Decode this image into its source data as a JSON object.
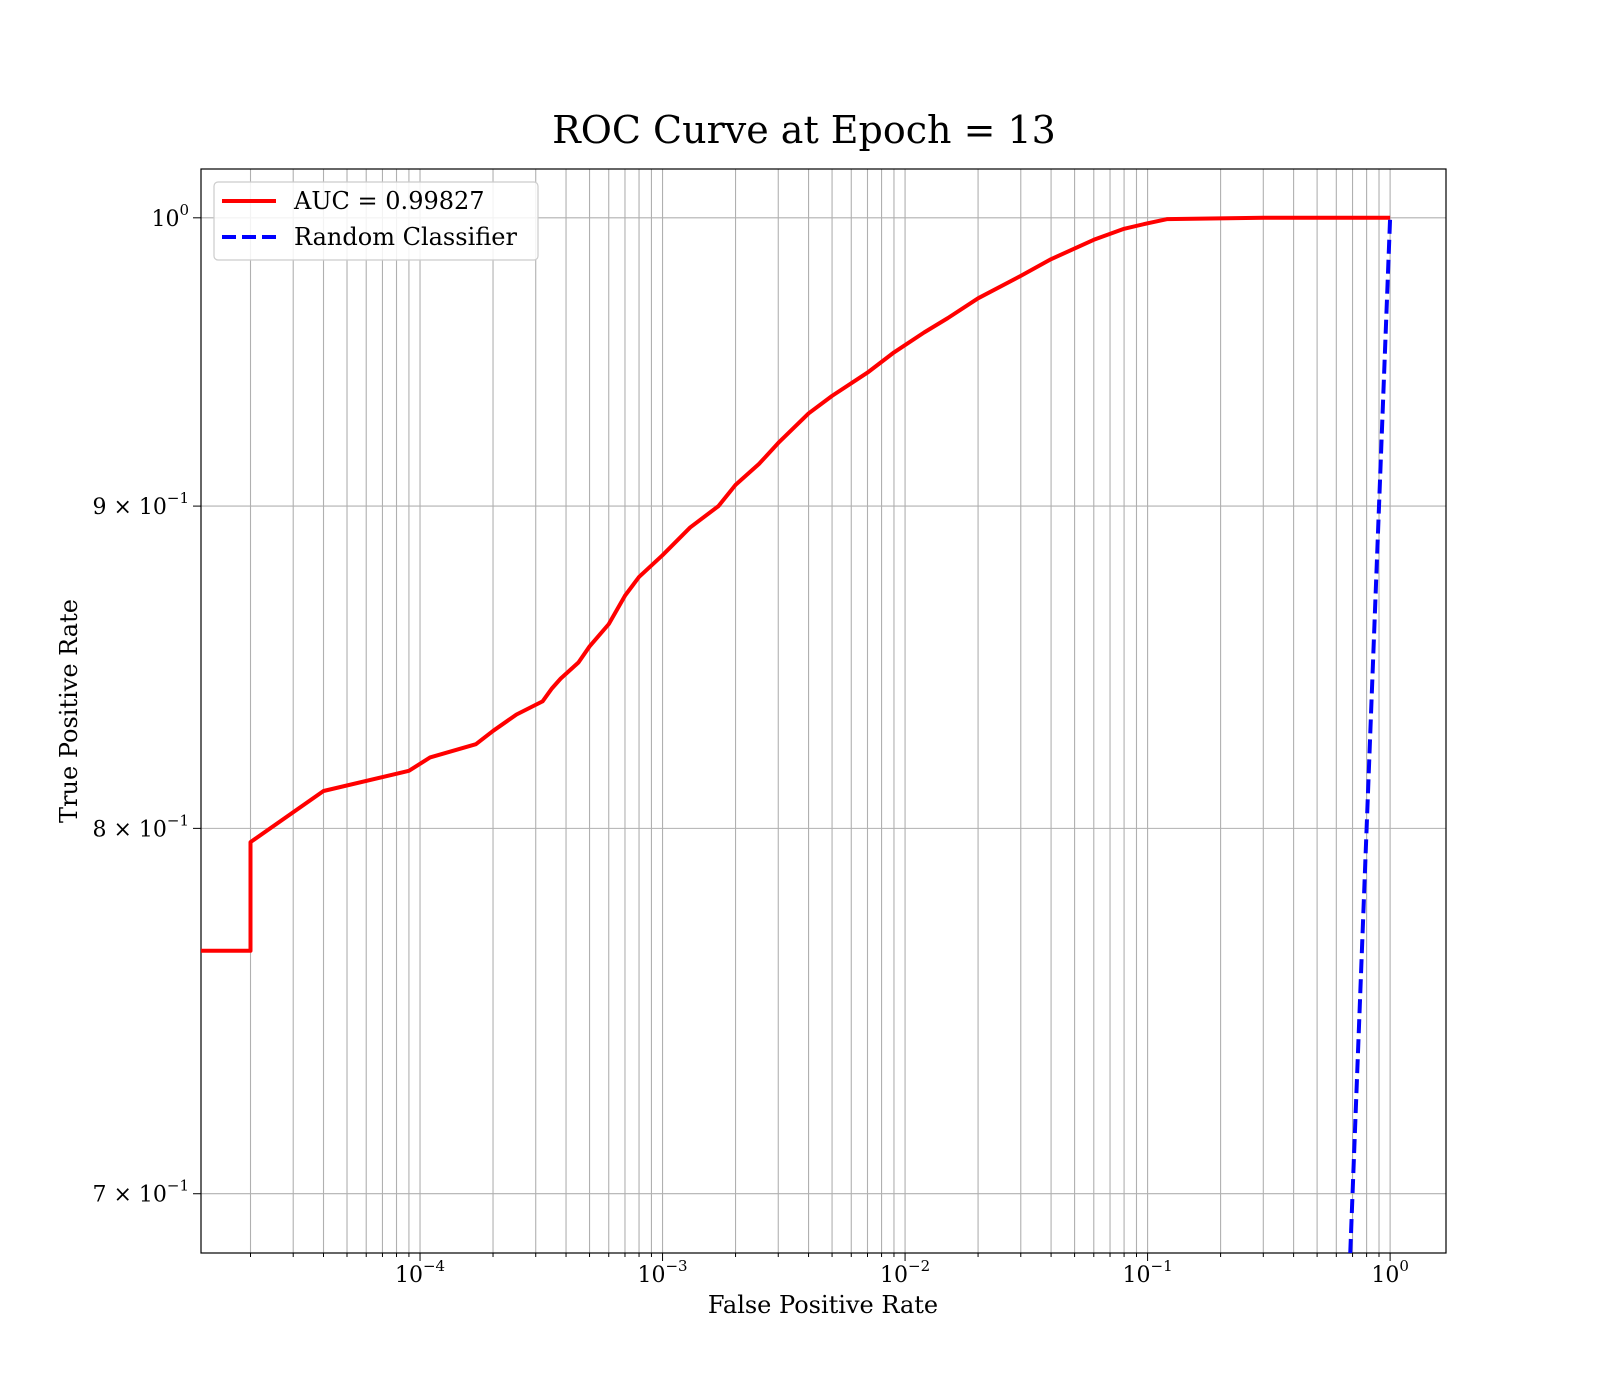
{
  "chart_data": {
    "type": "line",
    "title": "ROC Curve at Epoch = 13",
    "xlabel": "False Positive Rate",
    "ylabel": "True Positive Rate",
    "xscale": "log",
    "yscale": "log",
    "xlim": [
      1.25e-05,
      1.7
    ],
    "ylim": [
      0.685,
      1.018
    ],
    "grid": true,
    "grid_minor": true,
    "legend": "top-left",
    "x_ticks": [
      {
        "value": 0.0001,
        "base": "10",
        "exp": "−4"
      },
      {
        "value": 0.001,
        "base": "10",
        "exp": "−3"
      },
      {
        "value": 0.01,
        "base": "10",
        "exp": "−2"
      },
      {
        "value": 0.1,
        "base": "10",
        "exp": "−1"
      },
      {
        "value": 1,
        "base": "10",
        "exp": "0"
      }
    ],
    "y_ticks": [
      {
        "value": 1.0,
        "base": "10",
        "exp": "0",
        "mantissa": ""
      },
      {
        "value": 0.9,
        "base": "10",
        "exp": "−1",
        "mantissa": "9 × "
      },
      {
        "value": 0.8,
        "base": "10",
        "exp": "−1",
        "mantissa": "8 × "
      },
      {
        "value": 0.7,
        "base": "10",
        "exp": "−1",
        "mantissa": "7 × "
      }
    ],
    "series": [
      {
        "name": "AUC = 0.99827",
        "color": "#ff0000",
        "style": "solid",
        "x": [
          1.25e-05,
          2e-05,
          2e-05,
          4e-05,
          9e-05,
          0.00011,
          0.00017,
          0.0002,
          0.00025,
          0.00032,
          0.00035,
          0.00038,
          0.00045,
          0.0005,
          0.0006,
          0.0007,
          0.0008,
          0.001,
          0.0013,
          0.0017,
          0.002,
          0.0025,
          0.003,
          0.004,
          0.005,
          0.007,
          0.009,
          0.012,
          0.015,
          0.02,
          0.03,
          0.04,
          0.06,
          0.08,
          0.1,
          0.12,
          0.3,
          0.6,
          1.0
        ],
        "y": [
          0.765,
          0.765,
          0.796,
          0.811,
          0.817,
          0.821,
          0.825,
          0.829,
          0.834,
          0.838,
          0.842,
          0.845,
          0.85,
          0.855,
          0.862,
          0.871,
          0.877,
          0.884,
          0.893,
          0.9,
          0.907,
          0.914,
          0.921,
          0.931,
          0.937,
          0.945,
          0.952,
          0.959,
          0.964,
          0.971,
          0.979,
          0.985,
          0.992,
          0.996,
          0.998,
          0.9995,
          1.0,
          1.0,
          1.0
        ]
      },
      {
        "name": "Random Classifier",
        "color": "#0000ff",
        "style": "dashed",
        "x": [
          0.685,
          0.8,
          0.9,
          1.0
        ],
        "y": [
          0.685,
          0.8,
          0.9,
          1.0
        ]
      }
    ]
  }
}
